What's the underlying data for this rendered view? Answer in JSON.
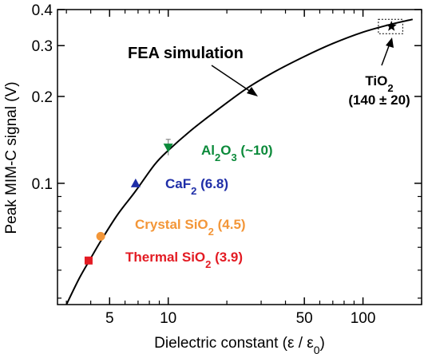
{
  "chart_data": {
    "type": "scatter",
    "x_scale": "log",
    "y_scale": "log",
    "xlim": [
      2.7,
      200
    ],
    "ylim": [
      0.038,
      0.4
    ],
    "xlabel_main": "Dielectric constant (ε / ε",
    "xlabel_sub": "0",
    "xlabel_end": ")",
    "ylabel": "Peak MIM-C signal (V)",
    "x_ticks": [
      {
        "value": 5,
        "label": "5"
      },
      {
        "value": 10,
        "label": "10"
      },
      {
        "value": 50,
        "label": "50"
      },
      {
        "value": 100,
        "label": "100"
      }
    ],
    "y_ticks": [
      {
        "value": 0.1,
        "label": "0.1"
      },
      {
        "value": 0.2,
        "label": "0.2"
      },
      {
        "value": 0.3,
        "label": "0.3"
      },
      {
        "value": 0.4,
        "label": "0.4"
      }
    ],
    "curve": {
      "label": "FEA simulation",
      "color": "#000000",
      "x": [
        3.0,
        3.5,
        4.0,
        4.5,
        5.5,
        6.8,
        8.5,
        10,
        13,
        17,
        25,
        35,
        50,
        70,
        100,
        140,
        180
      ],
      "y": [
        0.038,
        0.047,
        0.055,
        0.063,
        0.078,
        0.094,
        0.116,
        0.13,
        0.152,
        0.175,
        0.212,
        0.243,
        0.275,
        0.305,
        0.334,
        0.356,
        0.37
      ]
    },
    "points": [
      {
        "name": "thermal-sio2",
        "label": "Thermal SiO",
        "sub": "2",
        "tail": " (3.9)",
        "x": 3.9,
        "y": 0.054,
        "marker": "square",
        "color": "#e31b23"
      },
      {
        "name": "crystal-sio2",
        "label": "Crystal SiO",
        "sub": "2",
        "tail": " (4.5)",
        "x": 4.5,
        "y": 0.0655,
        "marker": "circle",
        "color": "#f39638"
      },
      {
        "name": "caf2",
        "label": "CaF",
        "sub": "2",
        "tail": " (6.8)",
        "x": 6.8,
        "y": 0.1,
        "marker": "triangle-up",
        "color": "#1f2ea8"
      },
      {
        "name": "al2o3",
        "label": "Al",
        "sub": "2",
        "mid": "O",
        "sub2": "3",
        "tail": " (~10)",
        "x": 10,
        "y": 0.133,
        "marker": "triangle-down",
        "color": "#0b8a3a",
        "error": [
          0.125,
          0.142
        ]
      },
      {
        "name": "tio2",
        "label": "TiO",
        "sub": "2",
        "line2": "(140 ± 20)",
        "x": 140,
        "y": 0.35,
        "marker": "star",
        "color": "#000000",
        "box_x": [
          120,
          160
        ],
        "box_y": [
          0.33,
          0.37
        ]
      }
    ]
  }
}
